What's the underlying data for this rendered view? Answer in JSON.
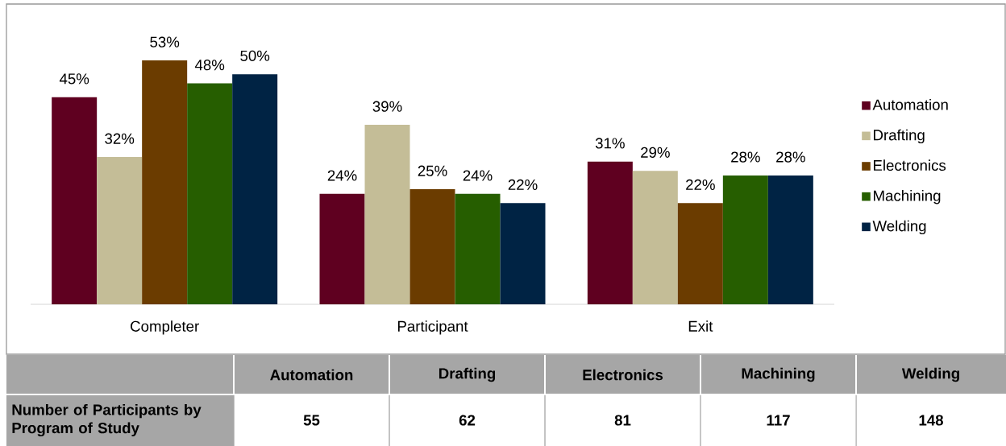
{
  "chart_data": {
    "type": "bar",
    "categories": [
      "Completer",
      "Participant",
      "Exit"
    ],
    "series": [
      {
        "name": "Automation",
        "color": "#5f0020",
        "values": [
          45,
          24,
          31
        ],
        "value_labels": [
          "45%",
          "24%",
          "31%"
        ]
      },
      {
        "name": "Drafting",
        "color": "#c4bd97",
        "values": [
          32,
          39,
          29
        ],
        "value_labels": [
          "32%",
          "39%",
          "29%"
        ]
      },
      {
        "name": "Electronics",
        "color": "#6b3c00",
        "values": [
          53,
          25,
          22
        ],
        "value_labels": [
          "53%",
          "25%",
          "22%"
        ]
      },
      {
        "name": "Machining",
        "color": "#265e00",
        "values": [
          48,
          24,
          28
        ],
        "value_labels": [
          "48%",
          "24%",
          "28%"
        ]
      },
      {
        "name": "Welding",
        "color": "#002344",
        "values": [
          50,
          22,
          28
        ],
        "value_labels": [
          "50%",
          "22%",
          "28%"
        ]
      }
    ],
    "legend": "right",
    "annotations": [
      "Number of Participants by Program of Study",
      "55",
      "62",
      "81",
      "117",
      "148"
    ]
  }
}
